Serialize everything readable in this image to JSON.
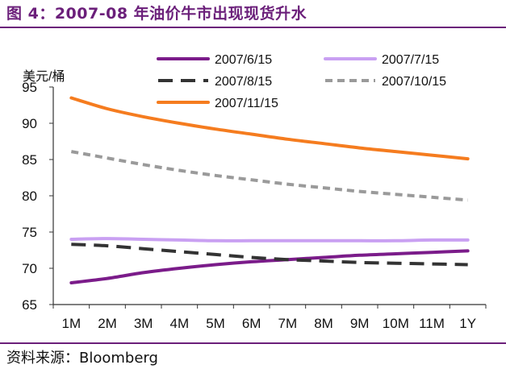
{
  "header": {
    "title": "图 4：2007-08 年油价牛市出现现货升水"
  },
  "footer": {
    "source": "资料来源：Bloomberg"
  },
  "colors": {
    "brand": "#6b1f7a",
    "axis": "#333333"
  },
  "chart_data": {
    "type": "line",
    "title": "2007-08 年油价牛市出现现货升水",
    "ylabel": "美元/桶",
    "xlabel": "",
    "categories": [
      "1M",
      "2M",
      "3M",
      "4M",
      "5M",
      "6M",
      "7M",
      "8M",
      "9M",
      "10M",
      "11M",
      "1Y"
    ],
    "ylim": [
      65,
      95
    ],
    "yticks": [
      65,
      70,
      75,
      80,
      85,
      90,
      95
    ],
    "grid": false,
    "legend_position": "top",
    "series": [
      {
        "name": "2007/6/15",
        "color": "#7b1c8a",
        "dash": "solid",
        "values": [
          68.0,
          68.6,
          69.4,
          70.0,
          70.5,
          70.9,
          71.2,
          71.5,
          71.8,
          72.0,
          72.2,
          72.4
        ]
      },
      {
        "name": "2007/7/15",
        "color": "#c9a0f2",
        "dash": "solid",
        "values": [
          74.0,
          74.1,
          74.0,
          73.9,
          73.8,
          73.8,
          73.8,
          73.8,
          73.8,
          73.8,
          73.9,
          73.9
        ]
      },
      {
        "name": "2007/8/15",
        "color": "#333333",
        "dash": "long",
        "values": [
          73.3,
          73.1,
          72.7,
          72.3,
          71.9,
          71.5,
          71.2,
          71.0,
          70.8,
          70.7,
          70.6,
          70.5
        ]
      },
      {
        "name": "2007/10/15",
        "color": "#9a9a9a",
        "dash": "short",
        "values": [
          86.1,
          85.2,
          84.3,
          83.5,
          82.8,
          82.2,
          81.6,
          81.1,
          80.6,
          80.2,
          79.8,
          79.4
        ]
      },
      {
        "name": "2007/11/15",
        "color": "#f57c1f",
        "dash": "solid",
        "values": [
          93.5,
          92.0,
          90.9,
          90.0,
          89.2,
          88.5,
          87.8,
          87.2,
          86.6,
          86.1,
          85.6,
          85.1
        ]
      }
    ]
  }
}
